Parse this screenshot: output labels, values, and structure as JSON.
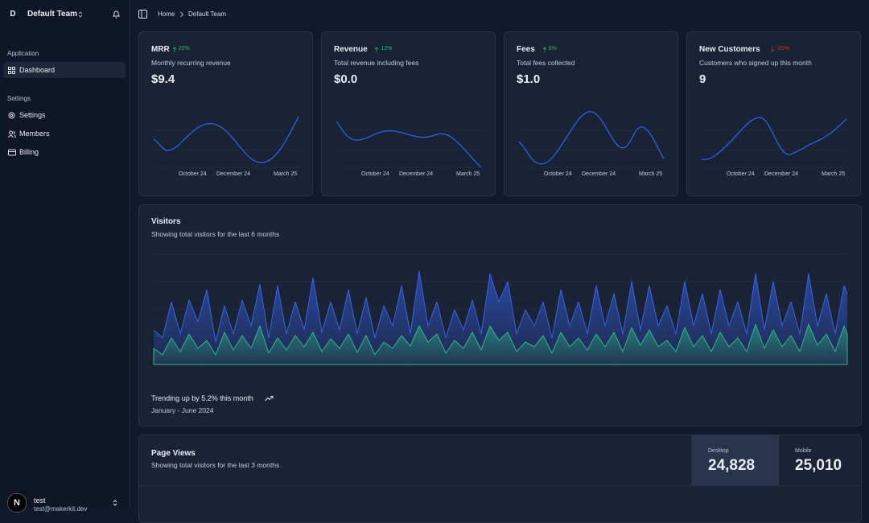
{
  "sidebar": {
    "avatar": "D",
    "team": "Default Team",
    "groups": [
      {
        "label": "Application",
        "items": [
          "Dashboard"
        ]
      },
      {
        "label": "Settings",
        "items": [
          "Settings",
          "Members",
          "Billing"
        ]
      }
    ],
    "user": {
      "initial": "N",
      "name": "test",
      "email": "test@makerkit.dev"
    }
  },
  "breadcrumb": [
    "Home",
    "Default Team"
  ],
  "cards": [
    {
      "title": "MRR",
      "change": "20%",
      "description": "Monthly recurring revenue",
      "value": "$9.4",
      "x_labels": [
        "October 24",
        "December 24",
        "March 25"
      ]
    },
    {
      "title": "Revenue",
      "change": "12%",
      "description": "Total revenue including fees",
      "value": "$0.0",
      "x_labels": [
        "October 24",
        "December 24",
        "March 25"
      ]
    },
    {
      "title": "Fees",
      "change": "9%",
      "description": "Total fees collected",
      "value": "$1.0",
      "x_labels": [
        "October 24",
        "December 24",
        "March 25"
      ]
    },
    {
      "title": "New Customers",
      "change": "-25%",
      "description": "Customers who signed up this month",
      "value": "9",
      "x_labels": [
        "October 24",
        "December 24",
        "March 25"
      ]
    }
  ],
  "visitors": {
    "title": "Visitors",
    "subtitle": "Showing total visitors for the last 6 months",
    "trend": "Trending up by 5.2% this month",
    "range": "January - June 2024"
  },
  "page_views": {
    "title": "Page Views",
    "subtitle": "Showing total visitors for the last 3 months",
    "desktop_label": "Desktop",
    "desktop_value": "24,828",
    "mobile_label": "Mobile",
    "mobile_value": "25,010"
  }
}
